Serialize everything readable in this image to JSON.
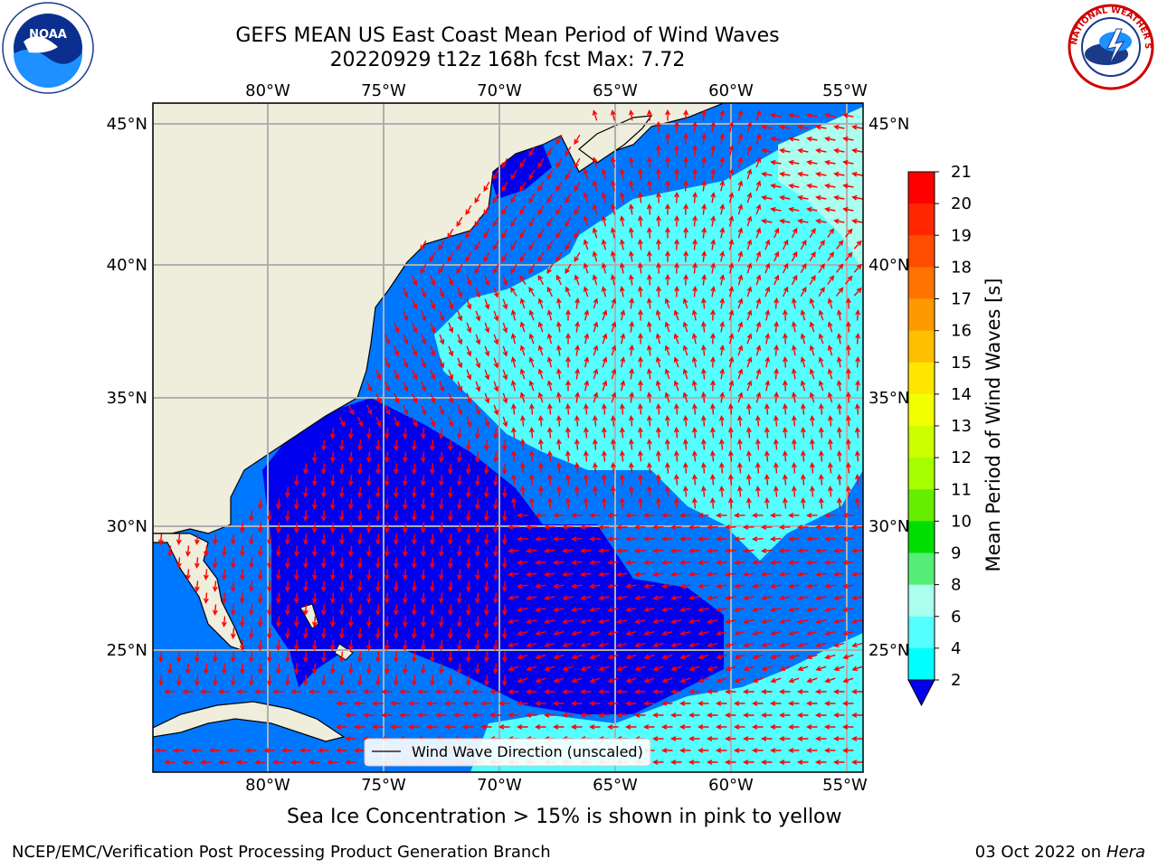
{
  "header": {
    "title_line1": "GEFS MEAN US East Coast Mean Period of Wind Waves",
    "title_line2": "20220929 t12z 168h fcst   Max: 7.72"
  },
  "map": {
    "lon_labels": [
      "80°W",
      "75°W",
      "70°W",
      "65°W",
      "60°W",
      "55°W"
    ],
    "lat_labels": [
      "45°N",
      "40°N",
      "35°N",
      "30°N",
      "25°N"
    ],
    "legend_label": "Wind Wave Direction (unscaled)",
    "land_color": "#efeddc",
    "arrow_color": "#ff0000"
  },
  "colorbar": {
    "label": "Mean Period of Wind Waves [s]",
    "ticks": [
      "21",
      "20",
      "19",
      "18",
      "17",
      "16",
      "15",
      "14",
      "13",
      "12",
      "11",
      "10",
      "9",
      "8",
      "6",
      "4",
      "2"
    ],
    "colors": [
      "#ff0000",
      "#ff2600",
      "#ff4d00",
      "#ff7300",
      "#ff9900",
      "#ffbf00",
      "#ffe600",
      "#f2ff00",
      "#ccff00",
      "#a6ff00",
      "#66ee00",
      "#00dd00",
      "#55ee77",
      "#aaffee",
      "#55ffff",
      "#00ffff",
      "#00bbff",
      "#0077ff",
      "#0000ee"
    ]
  },
  "footer": {
    "ice_note": "Sea Ice Concentration > 15% is shown in pink to yellow",
    "credit": "NCEP/EMC/Verification Post Processing Product Generation Branch",
    "date_prefix": "03 Oct 2022 on",
    "date_host": "Hera"
  },
  "logos": {
    "noaa_text": "NOAA",
    "nws_text": "NATIONAL WEATHER SERVICE"
  }
}
